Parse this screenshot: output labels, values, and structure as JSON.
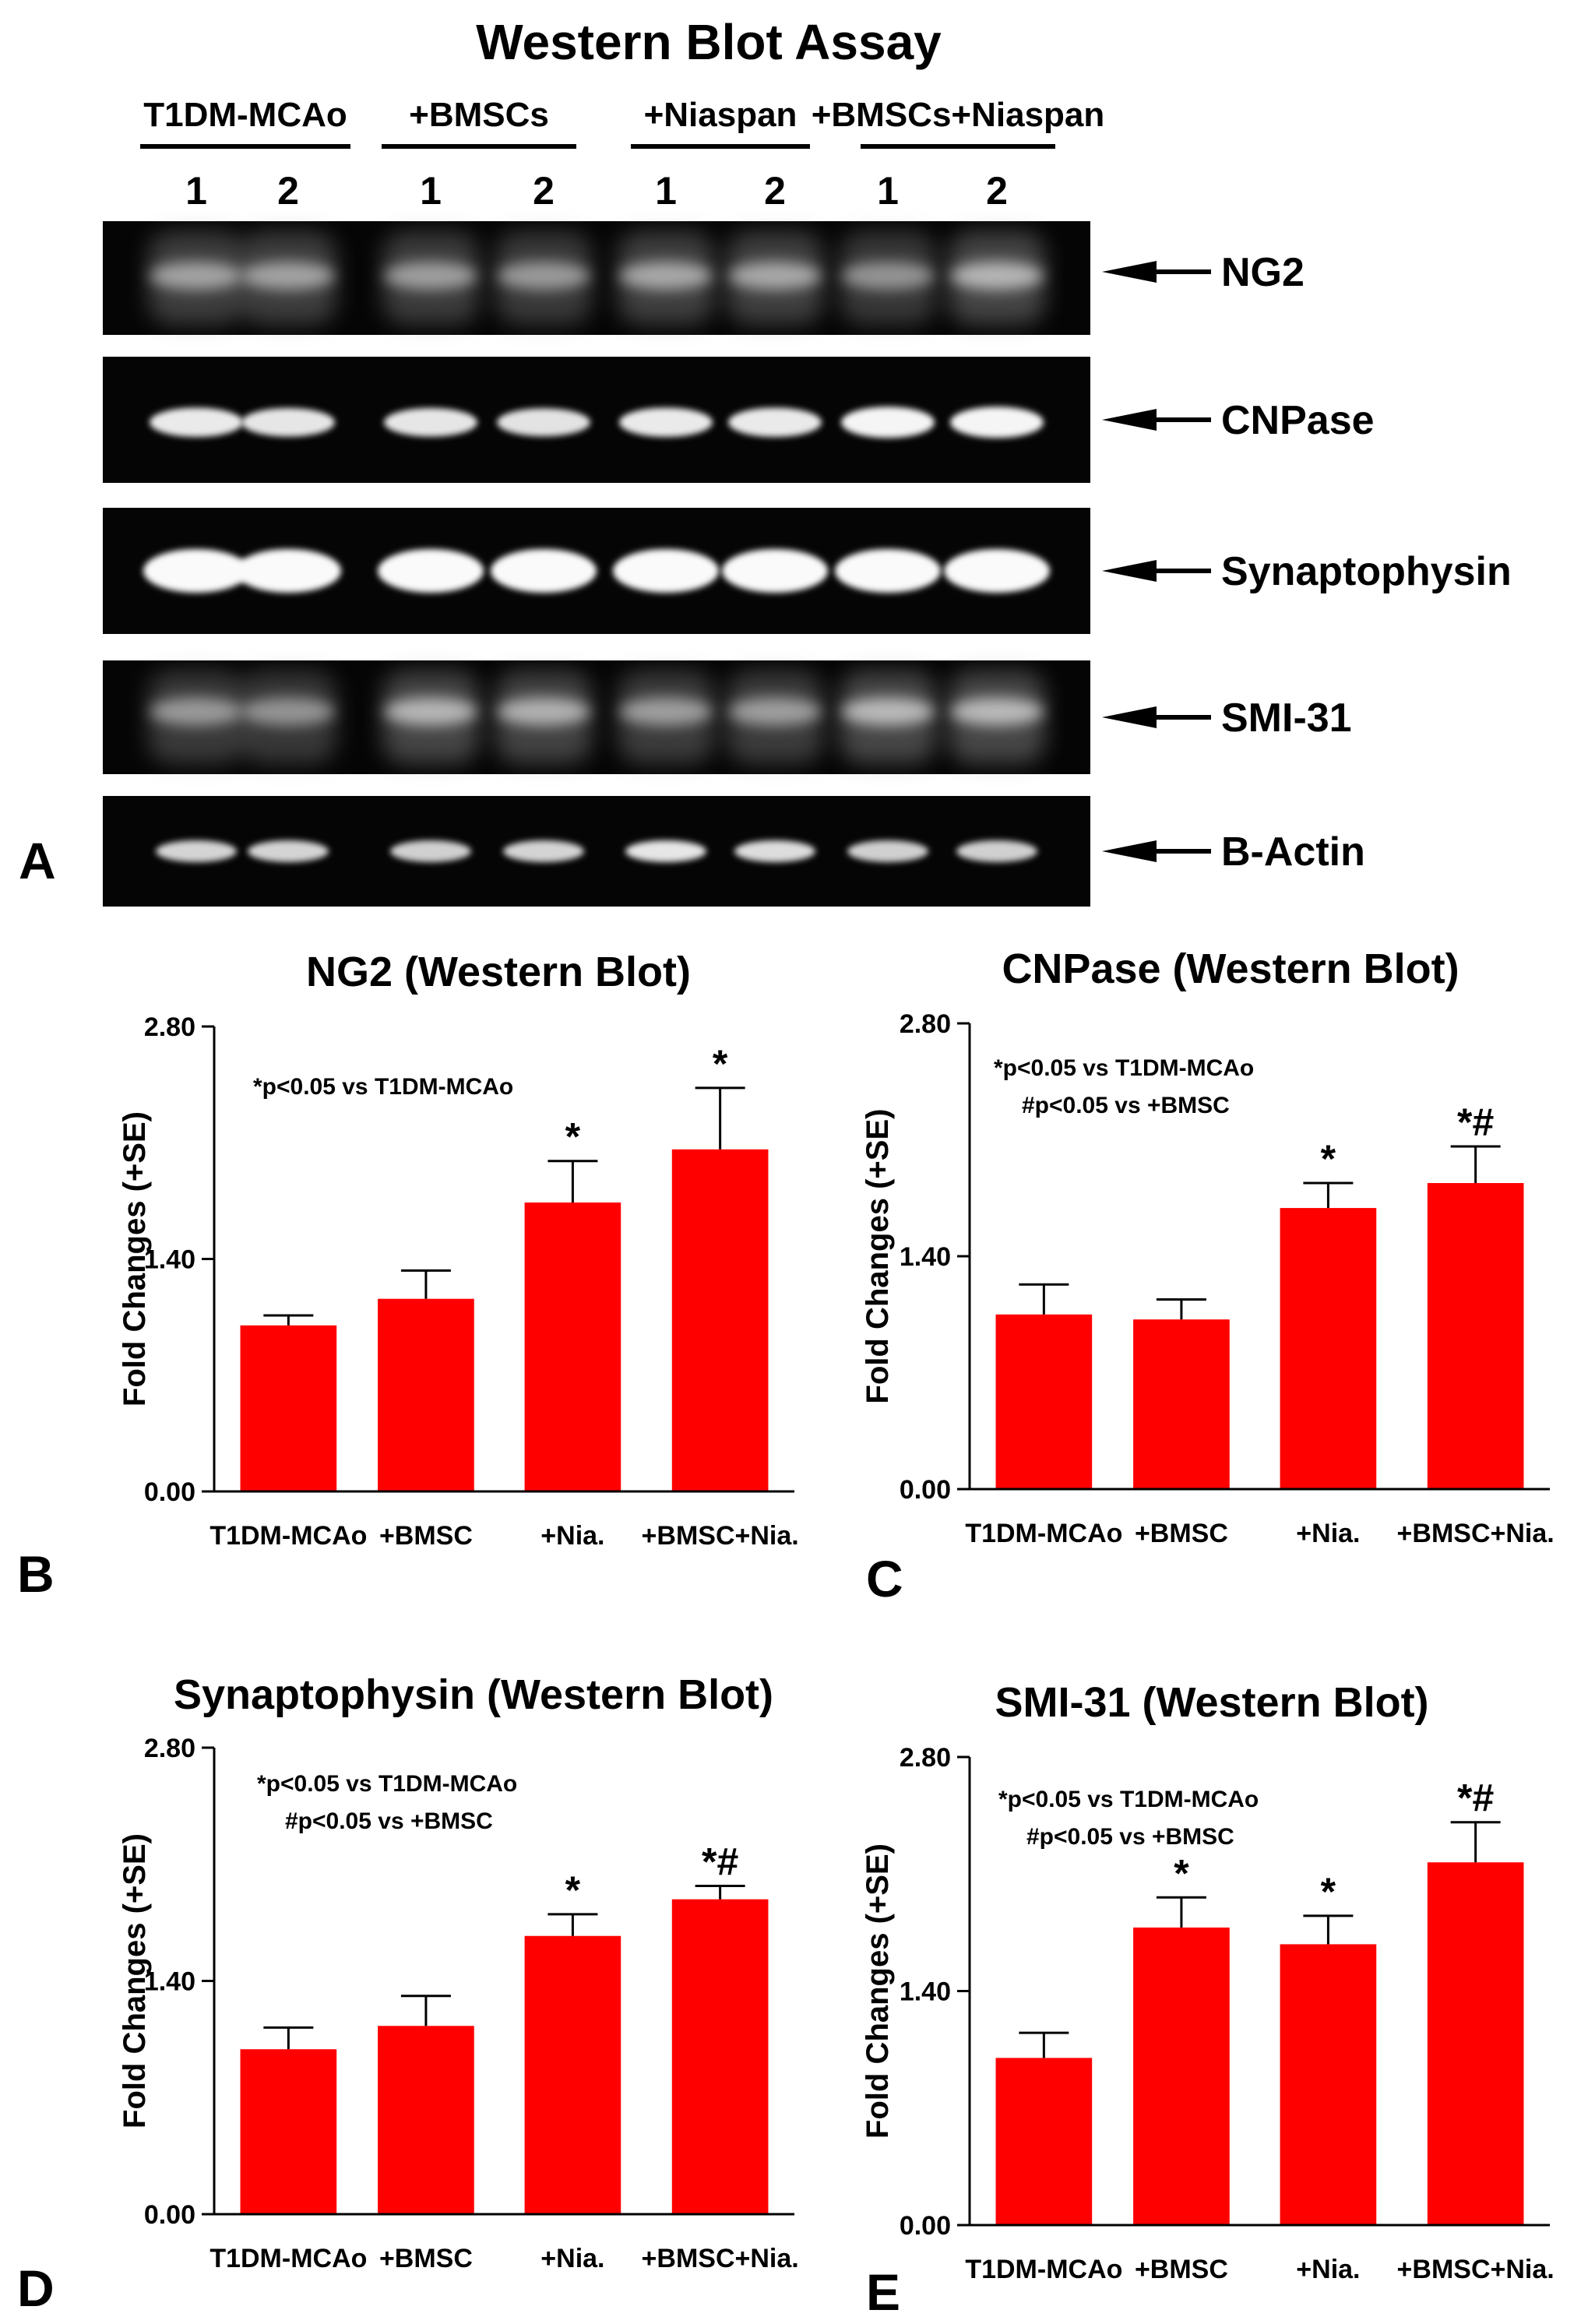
{
  "blot": {
    "title": "Western Blot Assay",
    "panel_letter": "A",
    "groups": [
      "T1DM-MCAo",
      "+BMSCs",
      "+Niaspan",
      "+BMSCs+Niaspan"
    ],
    "lane_labels": [
      "1",
      "2",
      "1",
      "2",
      "1",
      "2",
      "1",
      "2"
    ],
    "proteins": [
      "NG2",
      "CNPase",
      "Synaptophysin",
      "SMI-31",
      "B-Actin"
    ]
  },
  "chart_data": [
    {
      "type": "bar",
      "panel": "B",
      "title": "NG2 (Western Blot)",
      "ylabel": "Fold Changes (+SE)",
      "ylim": [
        0,
        2.8
      ],
      "yticks": [
        "0.00",
        "1.40",
        "2.80"
      ],
      "categories": [
        "T1DM-MCAo",
        "+BMSC",
        "+Nia.",
        "+BMSC+Nia."
      ],
      "values": [
        1.0,
        1.16,
        1.74,
        2.06
      ],
      "errors": [
        0.06,
        0.17,
        0.25,
        0.37
      ],
      "significance": [
        "",
        "",
        "*",
        "*"
      ],
      "annotations": [
        "*p<0.05 vs T1DM-MCAo"
      ],
      "bar_color": "#ff0000"
    },
    {
      "type": "bar",
      "panel": "C",
      "title": "CNPase (Western Blot)",
      "ylabel": "Fold Changes (+SE)",
      "ylim": [
        0,
        2.8
      ],
      "yticks": [
        "0.00",
        "1.40",
        "2.80"
      ],
      "categories": [
        "T1DM-MCAo",
        "+BMSC",
        "+Nia.",
        "+BMSC+Nia."
      ],
      "values": [
        1.05,
        1.02,
        1.69,
        1.84
      ],
      "errors": [
        0.18,
        0.12,
        0.15,
        0.22
      ],
      "significance": [
        "",
        "",
        "*",
        "*#"
      ],
      "annotations": [
        "*p<0.05 vs T1DM-MCAo",
        "#p<0.05 vs +BMSC"
      ],
      "bar_color": "#ff0000"
    },
    {
      "type": "bar",
      "panel": "D",
      "title": "Synaptophysin (Western Blot)",
      "ylabel": "Fold Changes (+SE)",
      "ylim": [
        0,
        2.8
      ],
      "yticks": [
        "0.00",
        "1.40",
        "2.80"
      ],
      "categories": [
        "T1DM-MCAo",
        "+BMSC",
        "+Nia.",
        "+BMSC+Nia."
      ],
      "values": [
        0.99,
        1.13,
        1.67,
        1.89
      ],
      "errors": [
        0.13,
        0.18,
        0.13,
        0.08
      ],
      "significance": [
        "",
        "",
        "*",
        "*#"
      ],
      "annotations": [
        "*p<0.05 vs T1DM-MCAo",
        "#p<0.05 vs +BMSC"
      ],
      "bar_color": "#ff0000"
    },
    {
      "type": "bar",
      "panel": "E",
      "title": "SMI-31 (Western Blot)",
      "ylabel": "Fold Changes (+SE)",
      "ylim": [
        0,
        2.8
      ],
      "yticks": [
        "0.00",
        "1.40",
        "2.80"
      ],
      "categories": [
        "T1DM-MCAo",
        "+BMSC",
        "+Nia.",
        "+BMSC+Nia."
      ],
      "values": [
        1.0,
        1.78,
        1.68,
        2.17
      ],
      "errors": [
        0.15,
        0.18,
        0.17,
        0.24
      ],
      "significance": [
        "",
        "*",
        "*",
        "*#"
      ],
      "annotations": [
        "*p<0.05 vs T1DM-MCAo",
        "#p<0.05 vs +BMSC"
      ],
      "bar_color": "#ff0000"
    }
  ]
}
